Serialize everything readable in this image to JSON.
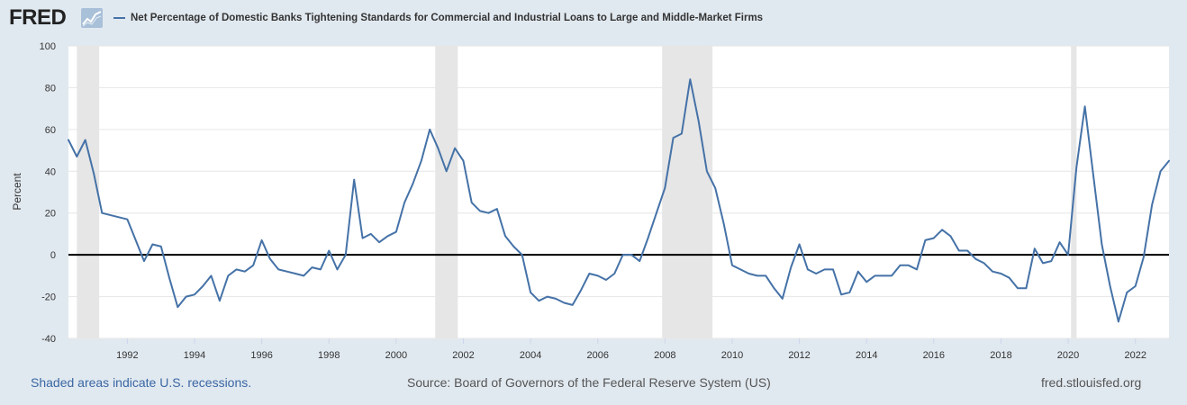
{
  "header": {
    "logo_text": "FRED",
    "logo_icon": "trend-line-icon",
    "series_title": "Net Percentage of Domestic Banks Tightening Standards for Commercial and Industrial Loans to Large and Middle-Market Firms"
  },
  "footer": {
    "recession_note": "Shaded areas indicate U.S. recessions.",
    "source": "Source: Board of Governors of the Federal Reserve System (US)",
    "site": "fred.stlouisfed.org"
  },
  "colors": {
    "line": "#4572a7",
    "recession": "#e6e6e6",
    "background": "#e1e9f0",
    "plot_background": "#ffffff"
  },
  "chart_data": {
    "type": "line",
    "title": "Net Percentage of Domestic Banks Tightening Standards for Commercial and Industrial Loans to Large and Middle-Market Firms",
    "xlabel": "",
    "ylabel": "Percent",
    "ylim": [
      -40,
      100
    ],
    "yticks": [
      -40,
      -20,
      0,
      20,
      40,
      60,
      80,
      100
    ],
    "xlim": [
      "1990-04-01",
      "2023-01-01"
    ],
    "xticks": [
      "1992",
      "1994",
      "1996",
      "1998",
      "2000",
      "2002",
      "2004",
      "2006",
      "2008",
      "2010",
      "2012",
      "2014",
      "2016",
      "2018",
      "2020",
      "2022"
    ],
    "grid": true,
    "legend_position": "top",
    "recessions": [
      [
        "1990-07-01",
        "1991-03-01"
      ],
      [
        "2001-03-01",
        "2001-11-01"
      ],
      [
        "2007-12-01",
        "2009-06-01"
      ],
      [
        "2020-02-01",
        "2020-04-01"
      ]
    ],
    "series": [
      {
        "x": [
          "1990-04-01",
          "1990-07-01",
          "1990-10-01",
          "1991-01-01",
          "1991-04-01",
          "1992-01-01",
          "1992-04-01",
          "1992-07-01",
          "1992-10-01",
          "1993-01-01",
          "1993-04-01",
          "1993-07-01",
          "1993-10-01",
          "1994-01-01",
          "1994-04-01",
          "1994-07-01",
          "1994-10-01",
          "1995-01-01",
          "1995-04-01",
          "1995-07-01",
          "1995-10-01",
          "1996-01-01",
          "1996-04-01",
          "1996-07-01",
          "1996-10-01",
          "1997-01-01",
          "1997-04-01",
          "1997-07-01",
          "1997-10-01",
          "1998-01-01",
          "1998-04-01",
          "1998-07-01",
          "1998-10-01",
          "1999-01-01",
          "1999-04-01",
          "1999-07-01",
          "1999-10-01",
          "2000-01-01",
          "2000-04-01",
          "2000-07-01",
          "2000-10-01",
          "2001-01-01",
          "2001-04-01",
          "2001-07-01",
          "2001-10-01",
          "2002-01-01",
          "2002-04-01",
          "2002-07-01",
          "2002-10-01",
          "2003-01-01",
          "2003-04-01",
          "2003-07-01",
          "2003-10-01",
          "2004-01-01",
          "2004-04-01",
          "2004-07-01",
          "2004-10-01",
          "2005-01-01",
          "2005-04-01",
          "2005-07-01",
          "2005-10-01",
          "2006-01-01",
          "2006-04-01",
          "2006-07-01",
          "2006-10-01",
          "2007-01-01",
          "2007-04-01",
          "2007-07-01",
          "2007-10-01",
          "2008-01-01",
          "2008-04-01",
          "2008-07-01",
          "2008-10-01",
          "2009-01-01",
          "2009-04-01",
          "2009-07-01",
          "2009-10-01",
          "2010-01-01",
          "2010-04-01",
          "2010-07-01",
          "2010-10-01",
          "2011-01-01",
          "2011-04-01",
          "2011-07-01",
          "2011-10-01",
          "2012-01-01",
          "2012-04-01",
          "2012-07-01",
          "2012-10-01",
          "2013-01-01",
          "2013-04-01",
          "2013-07-01",
          "2013-10-01",
          "2014-01-01",
          "2014-04-01",
          "2014-07-01",
          "2014-10-01",
          "2015-01-01",
          "2015-04-01",
          "2015-07-01",
          "2015-10-01",
          "2016-01-01",
          "2016-04-01",
          "2016-07-01",
          "2016-10-01",
          "2017-01-01",
          "2017-04-01",
          "2017-07-01",
          "2017-10-01",
          "2018-01-01",
          "2018-04-01",
          "2018-07-01",
          "2018-10-01",
          "2019-01-01",
          "2019-04-01",
          "2019-07-01",
          "2019-10-01",
          "2020-01-01",
          "2020-04-01",
          "2020-07-01",
          "2020-10-01",
          "2021-01-01",
          "2021-04-01",
          "2021-07-01",
          "2021-10-01",
          "2022-01-01",
          "2022-04-01",
          "2022-07-01",
          "2022-10-01",
          "2023-01-01"
        ],
        "values": [
          55,
          47,
          55,
          39,
          20,
          17,
          7,
          -3,
          5,
          4,
          -11,
          -25,
          -20,
          -19,
          -15,
          -10,
          -22,
          -10,
          -7,
          -8,
          -5,
          7,
          -2,
          -7,
          -8,
          -9,
          -10,
          -6,
          -7,
          2,
          -7,
          0,
          36,
          8,
          10,
          6,
          9,
          11,
          25,
          34,
          45,
          60,
          51,
          40,
          51,
          45,
          25,
          21,
          20,
          22,
          9,
          4,
          0,
          -18,
          -22,
          -20,
          -21,
          -23,
          -24,
          -17,
          -9,
          -10,
          -12,
          -9,
          0,
          0,
          -3,
          8,
          20,
          32,
          56,
          58,
          84,
          64,
          40,
          32,
          15,
          -5,
          -7,
          -9,
          -10,
          -10,
          -16,
          -21,
          -6,
          5,
          -7,
          -9,
          -7,
          -7,
          -19,
          -18,
          -8,
          -13,
          -10,
          -10,
          -10,
          -5,
          -5,
          -7,
          7,
          8,
          12,
          9,
          2,
          2,
          -2,
          -4,
          -8,
          -9,
          -11,
          -16,
          -16,
          3,
          -4,
          -3,
          6,
          0,
          42,
          71,
          38,
          5,
          -15,
          -32,
          -18,
          -15,
          -1,
          24,
          40,
          45
        ]
      }
    ]
  }
}
